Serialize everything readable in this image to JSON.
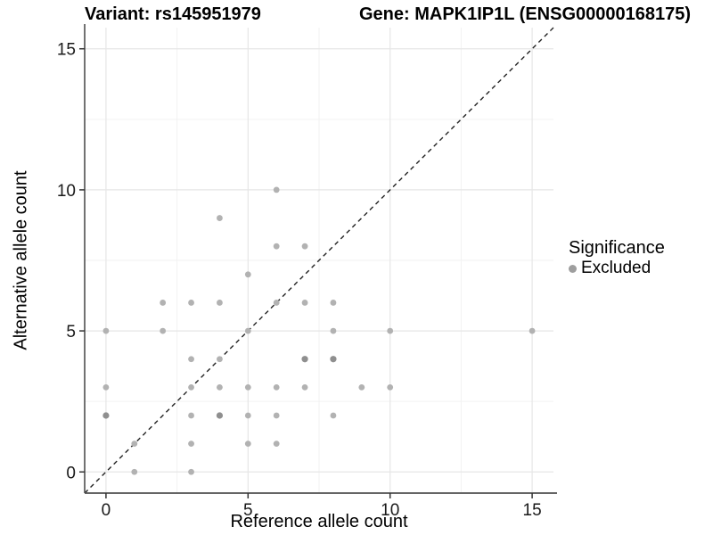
{
  "titles": {
    "variant": "Variant: rs145951979",
    "gene": "Gene: MAPK1IP1L (ENSG00000168175)"
  },
  "legend": {
    "title": "Significance",
    "items": [
      {
        "label": "Excluded",
        "color": "#9e9e9e"
      }
    ]
  },
  "colors": {
    "point": "#b2b2b2",
    "point_overplotted": "#8f8f8f",
    "grid_major": "#e6e6e6",
    "grid_minor": "#f2f2f2",
    "axis_line": "#4f4f4f",
    "tick_mark": "#333333",
    "tick_label": "#1a1a1a",
    "identity_line": "#222222",
    "background": "#ffffff"
  },
  "chart_data": {
    "type": "scatter",
    "title_left": "Variant: rs145951979",
    "title_right": "Gene: MAPK1IP1L (ENSG00000168175)",
    "xlabel": "Reference allele count",
    "ylabel": "Alternative allele count",
    "xlim": [
      -0.75,
      15.75
    ],
    "ylim": [
      -0.75,
      15.75
    ],
    "x_ticks": [
      0,
      5,
      10,
      15
    ],
    "y_ticks": [
      0,
      5,
      10,
      15
    ],
    "minor_gridlines": [
      2.5,
      7.5,
      12.5
    ],
    "grid": true,
    "legend_position": "right",
    "identity_line": {
      "type": "y=x",
      "style": "dashed"
    },
    "series": [
      {
        "name": "Excluded",
        "points": [
          [
            0,
            2
          ],
          [
            0,
            3
          ],
          [
            0,
            5
          ],
          [
            1,
            0
          ],
          [
            1,
            1
          ],
          [
            2,
            5
          ],
          [
            2,
            6
          ],
          [
            3,
            0
          ],
          [
            3,
            1
          ],
          [
            3,
            2
          ],
          [
            3,
            3
          ],
          [
            3,
            4
          ],
          [
            3,
            6
          ],
          [
            4,
            2
          ],
          [
            4,
            3
          ],
          [
            4,
            4
          ],
          [
            4,
            6
          ],
          [
            4,
            9
          ],
          [
            5,
            1
          ],
          [
            5,
            2
          ],
          [
            5,
            3
          ],
          [
            5,
            5
          ],
          [
            5,
            7
          ],
          [
            6,
            1
          ],
          [
            6,
            2
          ],
          [
            6,
            3
          ],
          [
            6,
            6
          ],
          [
            6,
            8
          ],
          [
            6,
            10
          ],
          [
            7,
            3
          ],
          [
            7,
            4
          ],
          [
            7,
            6
          ],
          [
            7,
            8
          ],
          [
            8,
            2
          ],
          [
            8,
            4
          ],
          [
            8,
            5
          ],
          [
            8,
            6
          ],
          [
            9,
            3
          ],
          [
            10,
            3
          ],
          [
            10,
            5
          ],
          [
            15,
            5
          ]
        ],
        "overplotted_points": [
          [
            0,
            2
          ],
          [
            4,
            2
          ],
          [
            7,
            4
          ],
          [
            8,
            4
          ]
        ]
      }
    ]
  }
}
